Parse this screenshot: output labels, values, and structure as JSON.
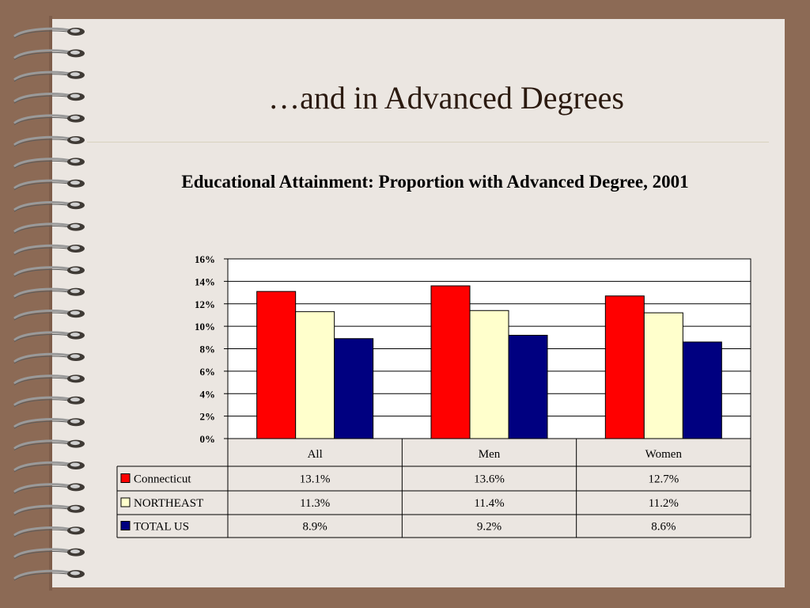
{
  "slide": {
    "title": "…and in Advanced Degrees"
  },
  "chart_data": {
    "type": "bar",
    "title": "Educational Attainment: Proportion with Advanced Degree, 2001",
    "categories": [
      "All",
      "Men",
      "Women"
    ],
    "series": [
      {
        "name": "Connecticut",
        "values": [
          13.1,
          13.6,
          12.7
        ],
        "color": "#ff0000",
        "labels": [
          "13.1%",
          "13.6%",
          "12.7%"
        ]
      },
      {
        "name": "NORTHEAST",
        "values": [
          11.3,
          11.4,
          11.2
        ],
        "color": "#ffffcc",
        "labels": [
          "11.3%",
          "11.4%",
          "11.2%"
        ]
      },
      {
        "name": "TOTAL US",
        "values": [
          8.9,
          9.2,
          8.6
        ],
        "color": "#000080",
        "labels": [
          "8.9%",
          "9.2%",
          "8.6%"
        ]
      }
    ],
    "ylim": [
      0,
      16
    ],
    "yticks": [
      0,
      2,
      4,
      6,
      8,
      10,
      12,
      14,
      16
    ],
    "ytick_labels": [
      "0%",
      "2%",
      "4%",
      "6%",
      "8%",
      "10%",
      "12%",
      "14%",
      "16%"
    ],
    "xlabel": "",
    "ylabel": "",
    "grid": true,
    "legend": "data-table-below"
  }
}
